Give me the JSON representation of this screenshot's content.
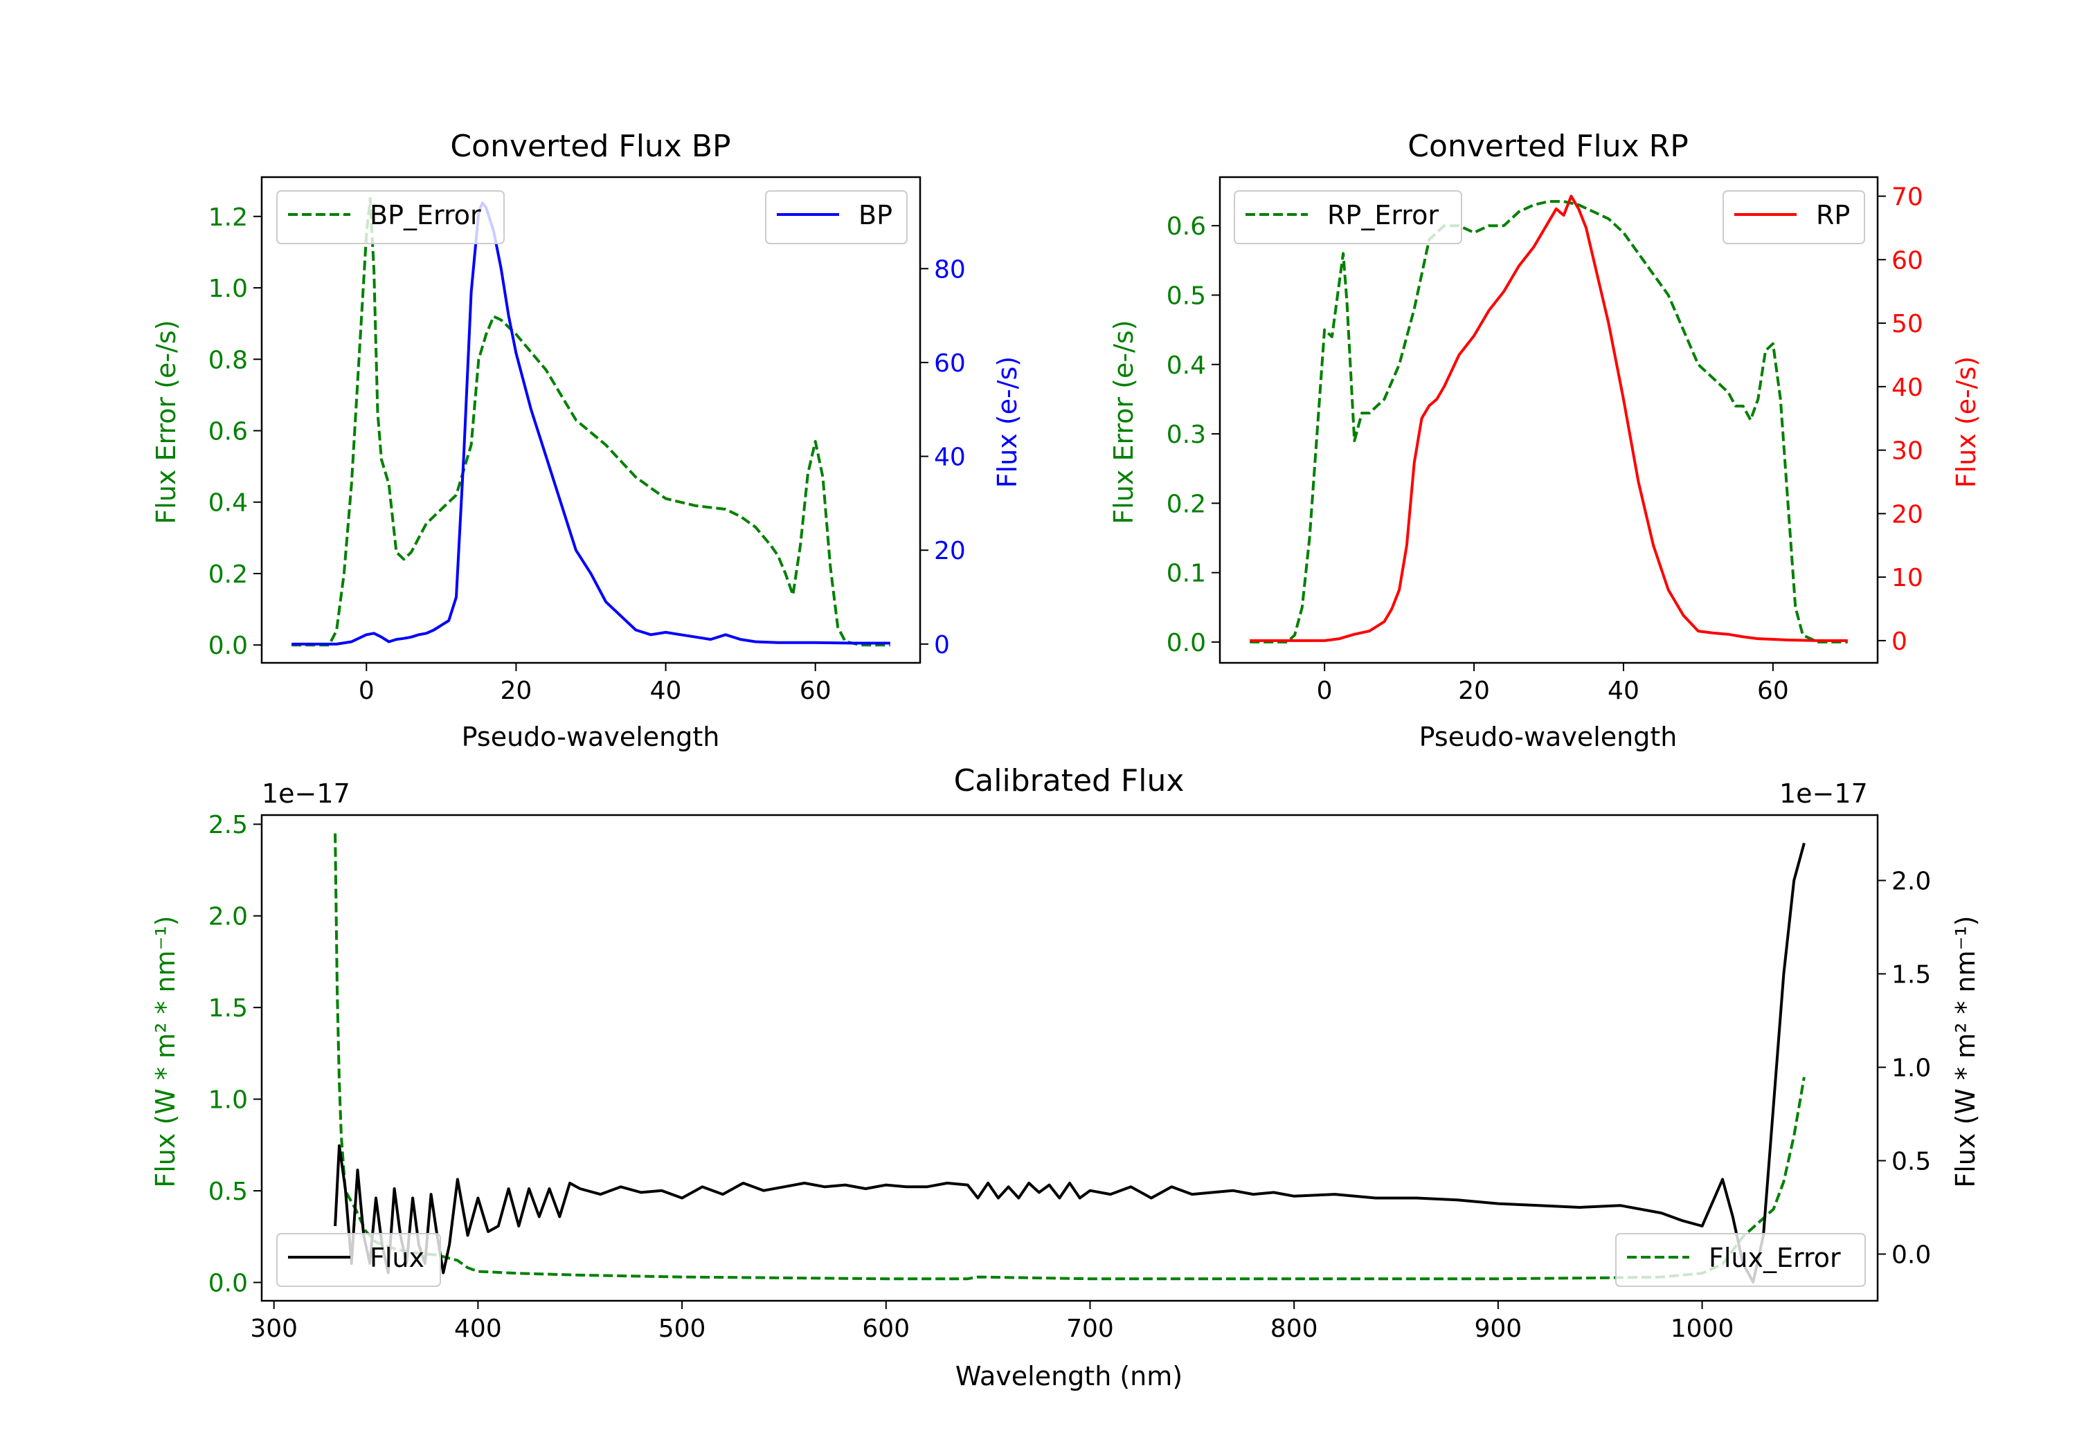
{
  "chart_data": [
    {
      "id": "bp",
      "type": "line",
      "title": "Converted Flux BP",
      "xlabel": "Pseudo-wavelength",
      "ylabel_left": "Flux Error (e-/s)",
      "ylabel_right": "Flux (e-/s)",
      "xlim": [
        -14,
        74
      ],
      "ylim_left": [
        -0.05,
        1.31
      ],
      "ylim_right": [
        -4.0,
        99.5
      ],
      "x_ticks": [
        0,
        20,
        40,
        60
      ],
      "y_ticks_left": [
        0.0,
        0.2,
        0.4,
        0.6,
        0.8,
        1.0,
        1.2
      ],
      "y_ticks_left_labels": [
        "0.0",
        "0.2",
        "0.4",
        "0.6",
        "0.8",
        "1.0",
        "1.2"
      ],
      "y_ticks_right": [
        0,
        20,
        40,
        60,
        80
      ],
      "legend_left": {
        "label": "BP_Error",
        "position": "upper left"
      },
      "legend_right": {
        "label": "BP",
        "position": "upper right"
      },
      "series": [
        {
          "name": "BP_Error",
          "axis": "left",
          "style": "dashed",
          "color": "#008000",
          "x": [
            -10,
            -5,
            -4,
            -3,
            -2,
            -1,
            0,
            0.5,
            1,
            1.5,
            2,
            3,
            4,
            5,
            6,
            7,
            8,
            10,
            12,
            14,
            15,
            16,
            17,
            18,
            20,
            24,
            28,
            32,
            36,
            40,
            44,
            48,
            50,
            52,
            54,
            55,
            56,
            57,
            58,
            59,
            60,
            61,
            62,
            63,
            64,
            66,
            68,
            70
          ],
          "y": [
            0.0,
            0.0,
            0.04,
            0.2,
            0.45,
            0.8,
            1.15,
            1.25,
            1.05,
            0.65,
            0.52,
            0.45,
            0.26,
            0.24,
            0.26,
            0.3,
            0.34,
            0.38,
            0.42,
            0.56,
            0.8,
            0.87,
            0.92,
            0.91,
            0.87,
            0.77,
            0.63,
            0.56,
            0.47,
            0.41,
            0.39,
            0.38,
            0.36,
            0.33,
            0.28,
            0.25,
            0.2,
            0.14,
            0.28,
            0.48,
            0.57,
            0.47,
            0.22,
            0.05,
            0.01,
            0.0,
            0.0,
            0.0
          ]
        },
        {
          "name": "BP",
          "axis": "right",
          "style": "solid",
          "color": "#0000ff",
          "x": [
            -10,
            -6,
            -4,
            -2,
            0,
            1,
            2,
            3,
            4,
            5,
            6,
            7,
            8,
            9,
            10,
            11,
            12,
            13,
            14,
            15,
            15.5,
            16,
            17,
            18,
            19,
            20,
            22,
            24,
            26,
            28,
            30,
            32,
            34,
            36,
            38,
            40,
            42,
            44,
            46,
            48,
            50,
            52,
            55,
            60,
            65,
            70
          ],
          "y": [
            0,
            0,
            0,
            0.5,
            2,
            2.3,
            1.5,
            0.5,
            1.0,
            1.2,
            1.5,
            2.0,
            2.3,
            3.0,
            4.0,
            5.0,
            10,
            40,
            75,
            92,
            94,
            93,
            88,
            80,
            70,
            62,
            50,
            40,
            30,
            20,
            15,
            9,
            6,
            3,
            2.0,
            2.5,
            2.0,
            1.5,
            1.0,
            2.0,
            1.0,
            0.5,
            0.3,
            0.3,
            0.2,
            0.2
          ]
        }
      ]
    },
    {
      "id": "rp",
      "type": "line",
      "title": "Converted Flux RP",
      "xlabel": "Pseudo-wavelength",
      "ylabel_left": "Flux Error (e-/s)",
      "ylabel_right": "Flux (e-/s)",
      "xlim": [
        -14,
        74
      ],
      "ylim_left": [
        -0.03,
        0.67
      ],
      "ylim_right": [
        -3.5,
        73.0
      ],
      "x_ticks": [
        0,
        20,
        40,
        60
      ],
      "y_ticks_left": [
        0.0,
        0.1,
        0.2,
        0.3,
        0.4,
        0.5,
        0.6
      ],
      "y_ticks_left_labels": [
        "0.0",
        "0.1",
        "0.2",
        "0.3",
        "0.4",
        "0.5",
        "0.6"
      ],
      "y_ticks_right": [
        0,
        10,
        20,
        30,
        40,
        50,
        60,
        70
      ],
      "legend_left": {
        "label": "RP_Error",
        "position": "upper left"
      },
      "legend_right": {
        "label": "RP",
        "position": "upper right"
      },
      "series": [
        {
          "name": "RP_Error",
          "axis": "left",
          "style": "dashed",
          "color": "#008000",
          "x": [
            -10,
            -5,
            -4,
            -3,
            -2,
            -1,
            0,
            1,
            2,
            2.5,
            3,
            4,
            5,
            6,
            8,
            10,
            12,
            14,
            16,
            18,
            20,
            22,
            24,
            26,
            28,
            30,
            32,
            34,
            36,
            38,
            40,
            42,
            44,
            46,
            48,
            50,
            52,
            54,
            55,
            56,
            57,
            58,
            59,
            60,
            61,
            62,
            63,
            64,
            66,
            68,
            70
          ],
          "y": [
            0.0,
            0.0,
            0.01,
            0.05,
            0.15,
            0.3,
            0.45,
            0.44,
            0.52,
            0.56,
            0.49,
            0.29,
            0.33,
            0.33,
            0.35,
            0.4,
            0.48,
            0.58,
            0.6,
            0.6,
            0.59,
            0.6,
            0.6,
            0.62,
            0.63,
            0.635,
            0.635,
            0.63,
            0.62,
            0.61,
            0.59,
            0.56,
            0.53,
            0.5,
            0.45,
            0.4,
            0.38,
            0.36,
            0.34,
            0.34,
            0.32,
            0.35,
            0.42,
            0.43,
            0.35,
            0.2,
            0.05,
            0.01,
            0.0,
            0.0,
            0.0
          ]
        },
        {
          "name": "RP",
          "axis": "right",
          "style": "solid",
          "color": "#ff0000",
          "x": [
            -10,
            -4,
            0,
            2,
            4,
            6,
            8,
            9,
            10,
            11,
            12,
            13,
            14,
            15,
            16,
            18,
            20,
            22,
            24,
            26,
            28,
            30,
            31,
            32,
            33,
            34,
            35,
            36,
            38,
            40,
            42,
            44,
            46,
            48,
            50,
            52,
            54,
            56,
            58,
            60,
            62,
            66,
            70
          ],
          "y": [
            0,
            0,
            0,
            0.3,
            1,
            1.5,
            3,
            5,
            8,
            15,
            28,
            35,
            37,
            38,
            40,
            45,
            48,
            52,
            55,
            59,
            62,
            66,
            68,
            67,
            70,
            68,
            65,
            60,
            50,
            38,
            25,
            15,
            8,
            4,
            1.5,
            1.2,
            1.0,
            0.6,
            0.3,
            0.2,
            0.1,
            0.0,
            0.0
          ]
        }
      ]
    },
    {
      "id": "cal",
      "type": "line",
      "title": "Calibrated Flux",
      "xlabel": "Wavelength (nm)",
      "ylabel_left": "Flux (W * m² * nm⁻¹)",
      "ylabel_right": "Flux (W * m² * nm⁻¹)",
      "offset_left": "1e−17",
      "offset_right": "1e−17",
      "xlim": [
        294,
        1086
      ],
      "ylim_left": [
        -0.1,
        2.55
      ],
      "ylim_right": [
        -0.25,
        2.35
      ],
      "x_ticks": [
        300,
        400,
        500,
        600,
        700,
        800,
        900,
        1000
      ],
      "y_ticks_left": [
        0.0,
        0.5,
        1.0,
        1.5,
        2.0,
        2.5
      ],
      "y_ticks_left_labels": [
        "0.0",
        "0.5",
        "1.0",
        "1.5",
        "2.0",
        "2.5"
      ],
      "y_ticks_right": [
        0.0,
        0.5,
        1.0,
        1.5,
        2.0
      ],
      "legend_left": {
        "label": "Flux",
        "position": "lower left"
      },
      "legend_right": {
        "label": "Flux_Error",
        "position": "lower right"
      },
      "series": [
        {
          "name": "Flux_Error",
          "axis": "left",
          "style": "dashed",
          "color": "#008000",
          "x": [
            330,
            331,
            332,
            333,
            335,
            340,
            345,
            350,
            360,
            370,
            380,
            390,
            395,
            400,
            420,
            450,
            500,
            550,
            600,
            640,
            645,
            700,
            800,
            900,
            950,
            980,
            1000,
            1010,
            1020,
            1030,
            1035,
            1040,
            1045,
            1050
          ],
          "y": [
            2.45,
            1.6,
            1.1,
            0.8,
            0.5,
            0.4,
            0.28,
            0.22,
            0.18,
            0.16,
            0.15,
            0.12,
            0.08,
            0.06,
            0.05,
            0.04,
            0.03,
            0.025,
            0.02,
            0.02,
            0.03,
            0.02,
            0.02,
            0.02,
            0.025,
            0.03,
            0.05,
            0.1,
            0.25,
            0.35,
            0.4,
            0.55,
            0.8,
            1.12
          ]
        },
        {
          "name": "Flux",
          "axis": "right",
          "style": "solid",
          "color": "#000000",
          "x": [
            330,
            332,
            335,
            338,
            341,
            344,
            347,
            350,
            353,
            356,
            359,
            362,
            365,
            368,
            371,
            374,
            377,
            380,
            383,
            386,
            390,
            395,
            400,
            405,
            410,
            415,
            420,
            425,
            430,
            435,
            440,
            445,
            450,
            460,
            470,
            480,
            490,
            500,
            510,
            520,
            530,
            540,
            550,
            560,
            570,
            580,
            590,
            600,
            610,
            620,
            630,
            640,
            645,
            650,
            655,
            660,
            665,
            670,
            675,
            680,
            685,
            690,
            695,
            700,
            710,
            720,
            730,
            740,
            750,
            760,
            770,
            780,
            790,
            800,
            820,
            840,
            860,
            880,
            900,
            920,
            940,
            960,
            980,
            990,
            1000,
            1010,
            1015,
            1020,
            1025,
            1030,
            1035,
            1040,
            1045,
            1050
          ],
          "y": [
            0.15,
            0.58,
            0.35,
            -0.05,
            0.45,
            0.1,
            -0.05,
            0.3,
            0.05,
            -0.1,
            0.35,
            0.1,
            -0.05,
            0.3,
            0.05,
            -0.05,
            0.32,
            0.1,
            -0.1,
            0.05,
            0.4,
            0.1,
            0.3,
            0.12,
            0.15,
            0.35,
            0.15,
            0.35,
            0.2,
            0.35,
            0.2,
            0.38,
            0.35,
            0.32,
            0.36,
            0.33,
            0.34,
            0.3,
            0.36,
            0.32,
            0.38,
            0.34,
            0.36,
            0.38,
            0.36,
            0.37,
            0.35,
            0.37,
            0.36,
            0.36,
            0.38,
            0.37,
            0.3,
            0.38,
            0.3,
            0.36,
            0.3,
            0.38,
            0.33,
            0.37,
            0.3,
            0.38,
            0.3,
            0.34,
            0.32,
            0.36,
            0.3,
            0.36,
            0.32,
            0.33,
            0.34,
            0.32,
            0.33,
            0.31,
            0.32,
            0.3,
            0.3,
            0.29,
            0.27,
            0.26,
            0.25,
            0.26,
            0.22,
            0.18,
            0.15,
            0.4,
            0.2,
            -0.05,
            -0.15,
            0.1,
            0.8,
            1.5,
            2.0,
            2.2
          ]
        }
      ]
    }
  ]
}
